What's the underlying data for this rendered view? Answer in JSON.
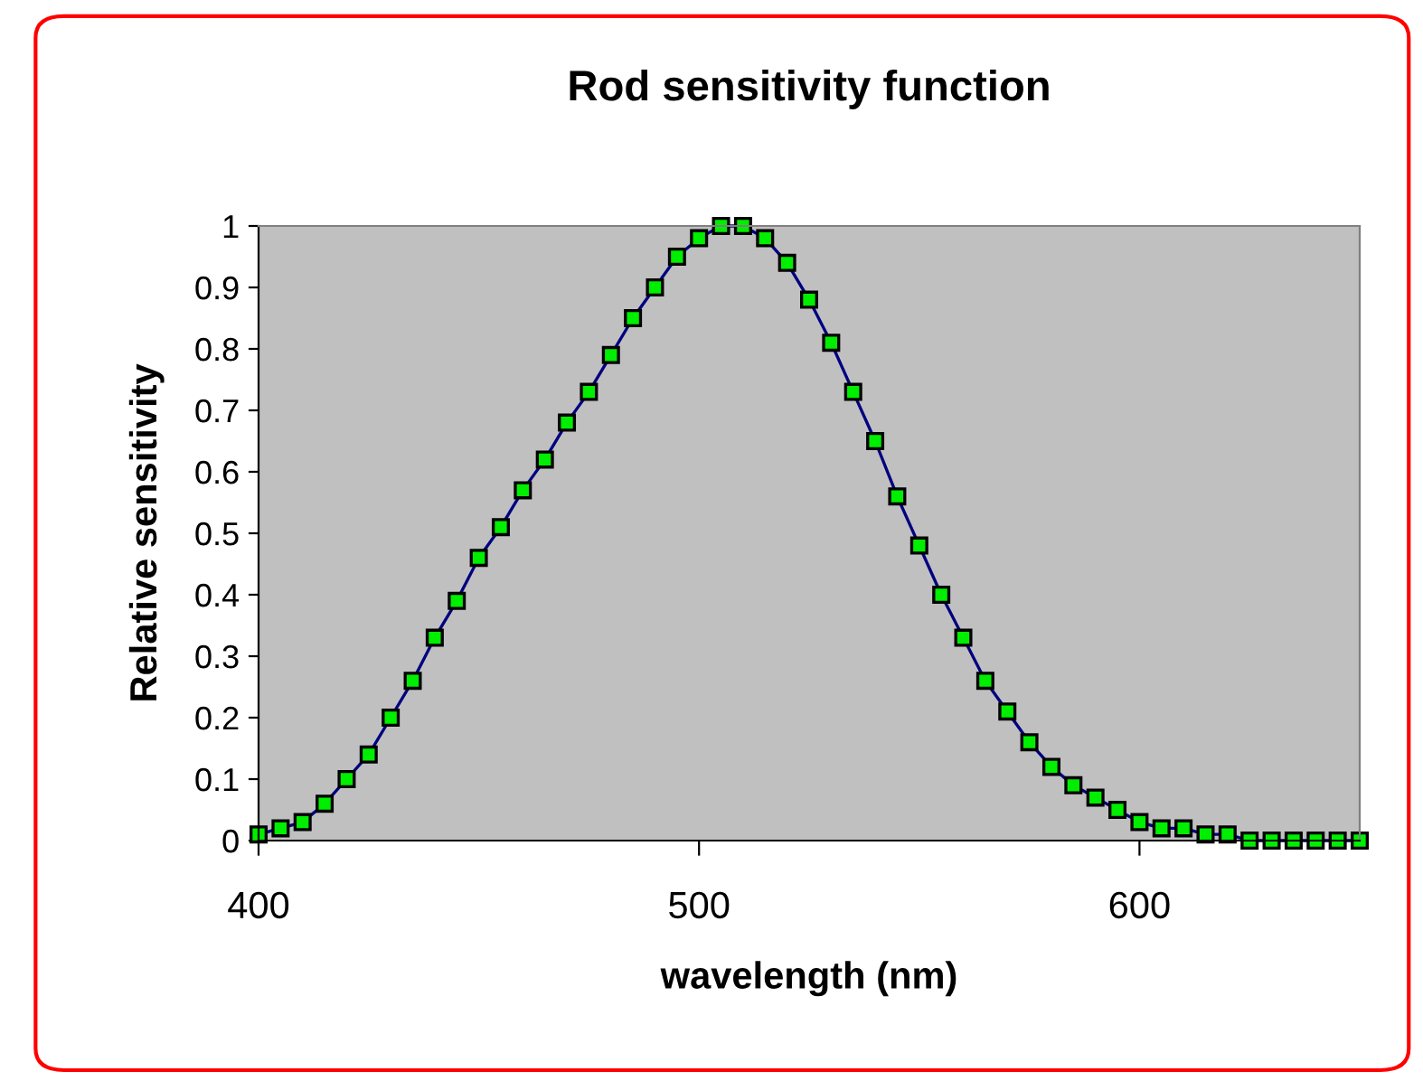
{
  "chart_data": {
    "type": "line",
    "title": "Rod sensitivity function",
    "xlabel": "wavelength (nm)",
    "ylabel": "Relative sensitivity",
    "x": [
      400,
      405,
      410,
      415,
      420,
      425,
      430,
      435,
      440,
      445,
      450,
      455,
      460,
      465,
      470,
      475,
      480,
      485,
      490,
      495,
      500,
      505,
      510,
      515,
      520,
      525,
      530,
      535,
      540,
      545,
      550,
      555,
      560,
      565,
      570,
      575,
      580,
      585,
      590,
      595,
      600,
      605,
      610,
      615,
      620,
      625,
      630,
      635,
      640,
      645,
      650
    ],
    "series": [
      {
        "color": "#000080",
        "values": [
          0.01,
          0.02,
          0.03,
          0.06,
          0.1,
          0.14,
          0.2,
          0.26,
          0.33,
          0.39,
          0.46,
          0.51,
          0.57,
          0.62,
          0.68,
          0.73,
          0.79,
          0.85,
          0.9,
          0.95,
          0.98,
          1.0,
          1.0,
          0.98,
          0.94,
          0.88,
          0.81,
          0.73,
          0.65,
          0.56,
          0.48,
          0.4,
          0.33,
          0.26,
          0.21,
          0.16,
          0.12,
          0.09,
          0.07,
          0.05,
          0.03,
          0.02,
          0.02,
          0.01,
          0.01,
          0.0,
          0.0,
          0.0,
          0.0,
          0.0,
          0.0
        ]
      }
    ],
    "marker": "square",
    "line_style": "solid",
    "xlim": [
      400,
      650
    ],
    "ylim": [
      0,
      1
    ],
    "xticks": [
      400,
      500,
      600
    ],
    "yticks": [
      0,
      0.1,
      0.2,
      0.3,
      0.4,
      0.5,
      0.6,
      0.7,
      0.8,
      0.9,
      1
    ],
    "grid": false,
    "legend": false
  }
}
